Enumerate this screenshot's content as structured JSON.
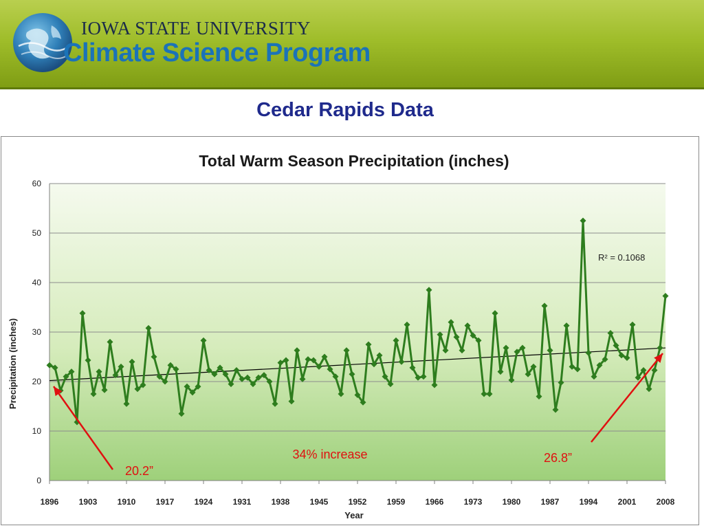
{
  "header": {
    "org_name": "IOWA STATE UNIVERSITY",
    "program_name": "Climate Science Program"
  },
  "page_title": "Cedar Rapids Data",
  "colors": {
    "series": "#2e7d1e",
    "trendline": "#000000",
    "annotation": "#e01010",
    "title": "#1f2a8c",
    "program": "#1b73b8"
  },
  "chart_data": {
    "type": "line",
    "title": "Total Warm Season Precipitation (inches)",
    "xlabel": "Year",
    "ylabel": "Precipitation (inches)",
    "ylim": [
      0,
      60
    ],
    "xlim": [
      1896,
      2008
    ],
    "yticks": [
      "0",
      "10",
      "20",
      "30",
      "40",
      "50",
      "60"
    ],
    "xticks": [
      "1896",
      "1903",
      "1910",
      "1917",
      "1924",
      "1931",
      "1938",
      "1945",
      "1952",
      "1959",
      "1966",
      "1973",
      "1980",
      "1987",
      "1994",
      "2001",
      "2008"
    ],
    "grid": "horizontal",
    "series": [
      {
        "marker": "diamond",
        "x": [
          1896,
          1897,
          1898,
          1899,
          1900,
          1901,
          1902,
          1903,
          1904,
          1905,
          1906,
          1907,
          1908,
          1909,
          1910,
          1911,
          1912,
          1913,
          1914,
          1915,
          1916,
          1917,
          1918,
          1919,
          1920,
          1921,
          1922,
          1923,
          1924,
          1925,
          1926,
          1927,
          1928,
          1929,
          1930,
          1931,
          1932,
          1933,
          1934,
          1935,
          1936,
          1937,
          1938,
          1939,
          1940,
          1941,
          1942,
          1943,
          1944,
          1945,
          1946,
          1947,
          1948,
          1949,
          1950,
          1951,
          1952,
          1953,
          1954,
          1955,
          1956,
          1957,
          1958,
          1959,
          1960,
          1961,
          1962,
          1963,
          1964,
          1965,
          1966,
          1967,
          1968,
          1969,
          1970,
          1971,
          1972,
          1973,
          1974,
          1975,
          1976,
          1977,
          1978,
          1979,
          1980,
          1981,
          1982,
          1983,
          1984,
          1985,
          1986,
          1987,
          1988,
          1989,
          1990,
          1991,
          1992,
          1993,
          1994,
          1995,
          1996,
          1997,
          1998,
          1999,
          2000,
          2001,
          2002,
          2003,
          2004,
          2005,
          2006,
          2007,
          2008
        ],
        "y": [
          23.3,
          22.8,
          18.2,
          21.0,
          22.0,
          11.8,
          33.8,
          24.3,
          17.5,
          22.0,
          18.3,
          28.0,
          21.3,
          23.0,
          15.5,
          24.0,
          18.5,
          19.3,
          30.8,
          25.0,
          21.0,
          20.0,
          23.3,
          22.5,
          13.5,
          19.0,
          17.8,
          19.0,
          28.3,
          22.3,
          21.5,
          22.8,
          21.5,
          19.5,
          22.3,
          20.5,
          20.8,
          19.5,
          20.8,
          21.3,
          20.0,
          15.5,
          23.8,
          24.3,
          16.0,
          26.3,
          20.5,
          24.5,
          24.3,
          23.0,
          25.0,
          22.5,
          21.0,
          17.5,
          26.3,
          21.5,
          17.3,
          15.8,
          27.5,
          23.5,
          25.3,
          21.0,
          19.5,
          28.3,
          24.0,
          31.5,
          22.8,
          20.8,
          21.0,
          38.5,
          19.3,
          29.5,
          26.3,
          32.0,
          29.0,
          26.3,
          31.3,
          29.3,
          28.3,
          17.5,
          17.5,
          33.8,
          22.0,
          26.8,
          20.3,
          26.0,
          26.8,
          21.5,
          23.0,
          17.0,
          35.3,
          26.3,
          14.3,
          19.8,
          31.3,
          23.0,
          22.5,
          52.5,
          25.8,
          21.0,
          23.3,
          24.5,
          29.8,
          27.3,
          25.3,
          24.8,
          31.5,
          20.8,
          22.3,
          18.5,
          22.3,
          26.8,
          37.3
        ]
      }
    ],
    "trendline": {
      "x": [
        1896,
        2008
      ],
      "y": [
        20.2,
        26.8
      ],
      "r2_label": "R² = 0.1068"
    },
    "annotations": {
      "start_value": "20.2”",
      "end_value": "26.8”",
      "increase": "34% increase"
    }
  }
}
